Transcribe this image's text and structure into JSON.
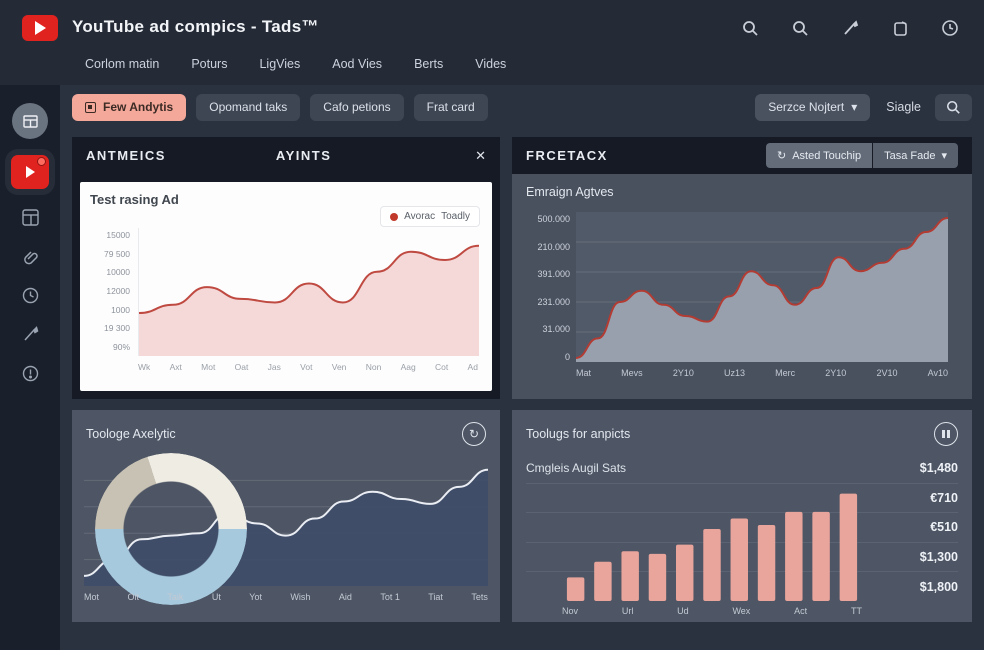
{
  "app": {
    "title": "YouTube ad compics - Tads™",
    "nav": [
      "Corlom matin",
      "Poturs",
      "LigVies",
      "Aod Vies",
      "Berts",
      "Vides"
    ]
  },
  "toolbar": {
    "primary_button": "Few Andytis",
    "buttons": [
      "Opomand taks",
      "Cafo petions",
      "Frat card"
    ],
    "filter_dropdown": "Serzce Nojtert",
    "caret": "▾",
    "single_label": "Siagle"
  },
  "panels": {
    "top_left": {
      "title": "ANTMEICS",
      "subtitle": "AYINTS",
      "close": "✕"
    },
    "top_right": {
      "title": "FRCETACX",
      "refresh_button": "Asted Touchip",
      "refresh_glyph": "↻",
      "mode_dropdown": "Tasa Fade",
      "caret": "▾"
    },
    "bottom_left": {
      "title": "Toologe Axelytic",
      "icon_glyph": "↻"
    },
    "bottom_right": {
      "title": "Toolugs for anpicts"
    }
  },
  "colors": {
    "accent_red": "#c0392b",
    "salmon": "#f4a89a",
    "bar_salmon": "#e9a49b",
    "donut_blue": "#a7c9dd",
    "donut_cream": "#efece3",
    "donut_beige": "#c8c2b4",
    "panel_bg": "#4e5665",
    "dark_header": "#151a25"
  },
  "chart_data": [
    {
      "id": "test-rasing-ad",
      "type": "area",
      "title": "Test rasing Ad",
      "legend": {
        "dot_color": "#c0392b",
        "labels": [
          "Avorac",
          "Toadly"
        ]
      },
      "y_labels": [
        "15000",
        "79 500",
        "10000",
        "12000",
        "1000",
        "19 300",
        "90%"
      ],
      "x_labels": [
        "Wk",
        "Axt",
        "Mot",
        "Oat",
        "Jas",
        "Vot",
        "Ven",
        "Non",
        "Aag",
        "Cot",
        "Ad"
      ],
      "values": [
        33,
        40,
        55,
        45,
        42,
        58,
        42,
        68,
        85,
        78,
        90
      ],
      "ylim": [
        0,
        100
      ],
      "line_color": "#bf4a41",
      "fill_color": "#f5d9d8",
      "grid": false
    },
    {
      "id": "emraign-agtves",
      "type": "area",
      "title": "Emraign Agtves",
      "y_labels": [
        "500.000",
        "210.000",
        "391.000",
        "231.000",
        "31.000",
        "0"
      ],
      "x_labels": [
        "Mat",
        "Mevs",
        "2Y10",
        "Uz13",
        "Merc",
        "2Y10",
        "2V10",
        "Av10"
      ],
      "values": [
        0,
        14,
        40,
        48,
        38,
        30,
        26,
        44,
        62,
        52,
        38,
        50,
        72,
        62,
        68,
        78,
        90,
        100
      ],
      "ylim": [
        0,
        100
      ],
      "line_color": "#b23c33",
      "fill_color": "#98a0ae",
      "grid": true
    },
    {
      "id": "toologe-axelytic",
      "type": "area",
      "title": "Toologe Axelytic",
      "x_labels": [
        "Mot",
        "Oit",
        "Taik",
        "Ut",
        "Yot",
        "Wish",
        "Aid",
        "Tot 1",
        "Tiat",
        "Tets"
      ],
      "values": [
        5,
        18,
        35,
        38,
        40,
        56,
        48,
        38,
        52,
        66,
        74,
        68,
        64,
        78,
        92
      ],
      "ylim": [
        0,
        100
      ],
      "line_color": "#eaedf3",
      "fill_color": "rgba(62,76,104,0.9)",
      "grid": true,
      "donut_slices": [
        {
          "color": "#a7c9dd",
          "pct": 50
        },
        {
          "color": "#c8c2b4",
          "pct": 20
        },
        {
          "color": "#efece3",
          "pct": 30
        }
      ]
    },
    {
      "id": "toolugs-bars",
      "type": "bar",
      "title": "Toolugs for anpicts",
      "x_labels": [
        "Nov",
        "Url",
        "Ud",
        "Wex",
        "Act",
        "TT"
      ],
      "values": [
        18,
        30,
        38,
        36,
        43,
        55,
        63,
        58,
        68,
        68,
        82
      ],
      "ylim": [
        0,
        100
      ],
      "bar_color": "#e9a49b",
      "grid": false,
      "stats_rows": [
        {
          "label": "Cmgleis Augil Sats",
          "value": "$1,480"
        },
        {
          "label": "",
          "value": "€710"
        },
        {
          "label": "",
          "value": "€510"
        },
        {
          "label": "",
          "value": "$1,300"
        },
        {
          "label": "",
          "value": "$1,800"
        }
      ]
    }
  ]
}
